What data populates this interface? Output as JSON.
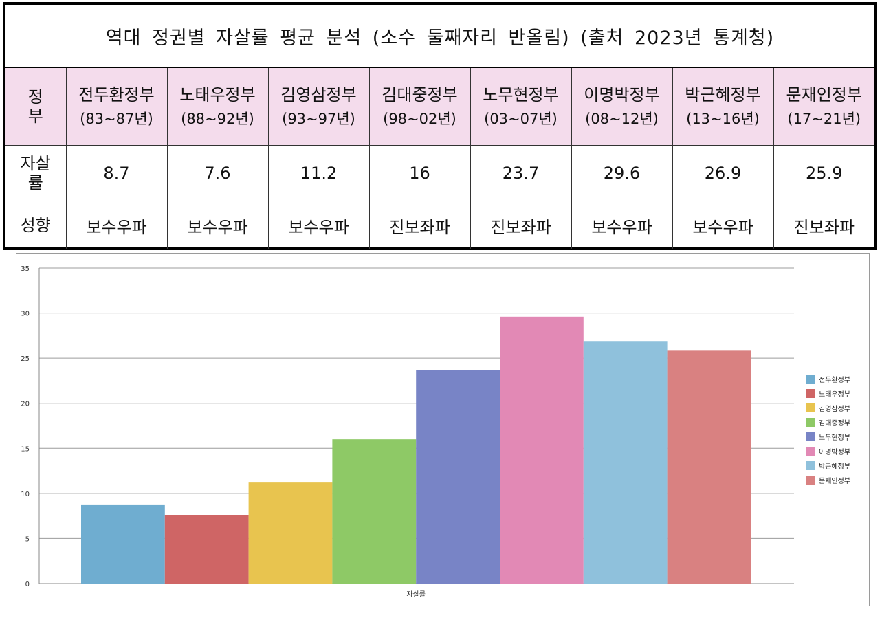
{
  "table": {
    "title": "역대 정권별 자살률 평균 분석 (소수 둘째자리 반올림) (출처 2023년 통계청)",
    "row_headers": {
      "government": [
        "정",
        "부"
      ],
      "rate": [
        "자살",
        "률"
      ],
      "leaning": "성향"
    },
    "columns": [
      {
        "name": "전두환정부",
        "years": "(83~87년)",
        "rate": "8.7",
        "leaning": "보수우파"
      },
      {
        "name": "노태우정부",
        "years": "(88~92년)",
        "rate": "7.6",
        "leaning": "보수우파"
      },
      {
        "name": "김영삼정부",
        "years": "(93~97년)",
        "rate": "11.2",
        "leaning": "보수우파"
      },
      {
        "name": "김대중정부",
        "years": "(98~02년)",
        "rate": "16",
        "leaning": "진보좌파"
      },
      {
        "name": "노무현정부",
        "years": "(03~07년)",
        "rate": "23.7",
        "leaning": "진보좌파"
      },
      {
        "name": "이명박정부",
        "years": "(08~12년)",
        "rate": "29.6",
        "leaning": "보수우파"
      },
      {
        "name": "박근혜정부",
        "years": "(13~16년)",
        "rate": "26.9",
        "leaning": "보수우파"
      },
      {
        "name": "문재인정부",
        "years": "(17~21년)",
        "rate": "25.9",
        "leaning": "진보좌파"
      }
    ]
  },
  "chart_data": {
    "type": "bar",
    "title": "",
    "xlabel": "자살률",
    "ylabel": "",
    "categories": [
      "자살률"
    ],
    "series": [
      {
        "name": "전두환정부",
        "values": [
          8.7
        ],
        "color": "#6fadd0"
      },
      {
        "name": "노태우정부",
        "values": [
          7.6
        ],
        "color": "#cf6565"
      },
      {
        "name": "김영삼정부",
        "values": [
          11.2
        ],
        "color": "#e8c44f"
      },
      {
        "name": "김대중정부",
        "values": [
          16
        ],
        "color": "#8ec966"
      },
      {
        "name": "노무현정부",
        "values": [
          23.7
        ],
        "color": "#7884c6"
      },
      {
        "name": "이명박정부",
        "values": [
          29.6
        ],
        "color": "#e289b5"
      },
      {
        "name": "박근혜정부",
        "values": [
          26.9
        ],
        "color": "#8fc1dc"
      },
      {
        "name": "문재인정부",
        "values": [
          25.9
        ],
        "color": "#d98181"
      }
    ],
    "ylim": [
      0,
      35
    ],
    "yticks": [
      "0",
      "5",
      "10",
      "15",
      "20",
      "25",
      "30",
      "35"
    ],
    "grid": true,
    "legend": "right"
  }
}
